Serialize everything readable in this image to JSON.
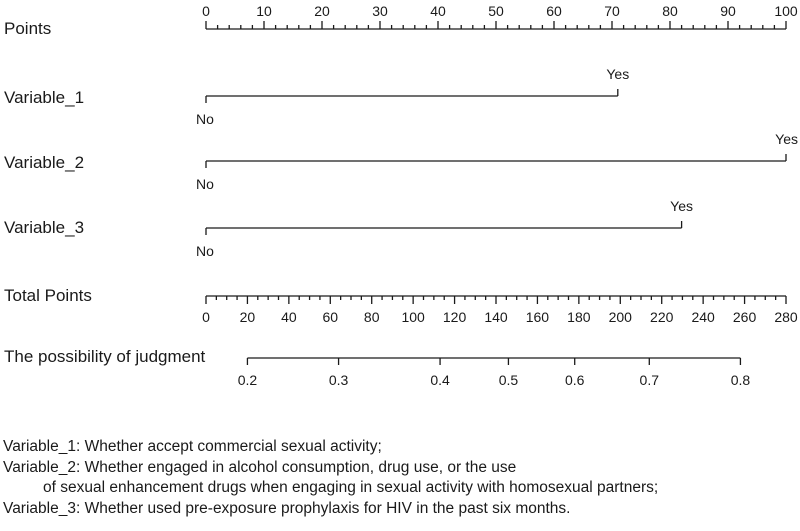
{
  "chart_data": {
    "type": "nomogram",
    "rows": [
      {
        "label": "Points",
        "kind": "axis",
        "min": 0,
        "max": 100,
        "major_step": 10,
        "minor_step": 2
      },
      {
        "label": "Variable_1",
        "kind": "variable",
        "levels": [
          {
            "label": "No",
            "points": 0
          },
          {
            "label": "Yes",
            "points": 71
          }
        ]
      },
      {
        "label": "Variable_2",
        "kind": "variable",
        "levels": [
          {
            "label": "No",
            "points": 0
          },
          {
            "label": "Yes",
            "points": 100
          }
        ]
      },
      {
        "label": "Variable_3",
        "kind": "variable",
        "levels": [
          {
            "label": "No",
            "points": 0
          },
          {
            "label": "Yes",
            "points": 82
          }
        ]
      },
      {
        "label": "Total Points",
        "kind": "axis",
        "min": 0,
        "max": 280,
        "major_step": 20,
        "minor_step": 5
      },
      {
        "label": "The possibility of judgment",
        "kind": "probability",
        "ticks": [
          {
            "label": "0.2",
            "total_points": 20
          },
          {
            "label": "0.3",
            "total_points": 64
          },
          {
            "label": "0.4",
            "total_points": 113
          },
          {
            "label": "0.5",
            "total_points": 146
          },
          {
            "label": "0.6",
            "total_points": 178
          },
          {
            "label": "0.7",
            "total_points": 214
          },
          {
            "label": "0.8",
            "total_points": 258
          }
        ]
      }
    ]
  },
  "footnotes": {
    "line1": "Variable_1: Whether accept commercial sexual activity;",
    "line2": "Variable_2: Whether engaged in alcohol consumption, drug use, or the use",
    "line3": "of sexual enhancement drugs when engaging in sexual activity with homosexual partners;",
    "line4": "Variable_3: Whether used pre-exposure prophylaxis for HIV in the past six months."
  }
}
